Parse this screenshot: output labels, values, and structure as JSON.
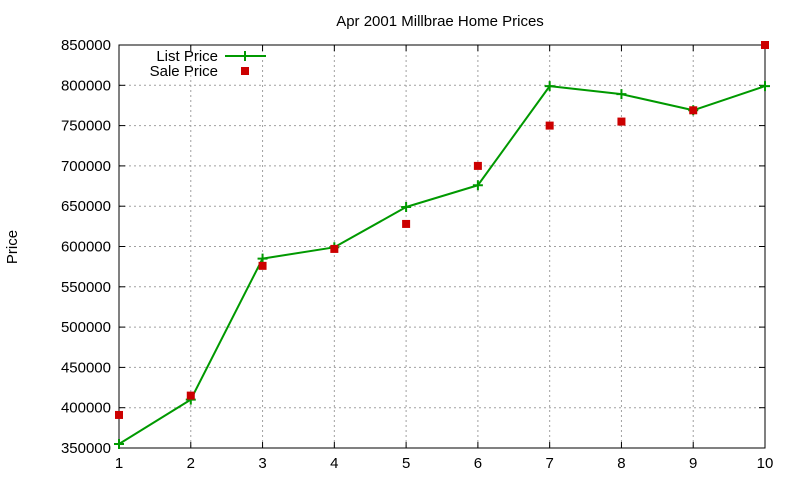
{
  "chart_data": {
    "type": "line",
    "title": "Apr 2001 Millbrae Home Prices",
    "xlabel": "",
    "ylabel": "Price",
    "x": [
      1,
      2,
      3,
      4,
      5,
      6,
      7,
      8,
      9,
      10
    ],
    "xlim": [
      1,
      10
    ],
    "ylim": [
      350000,
      850000
    ],
    "x_ticks": [
      "1",
      "2",
      "3",
      "4",
      "5",
      "6",
      "7",
      "8",
      "9",
      "10"
    ],
    "y_ticks": [
      "350000",
      "400000",
      "450000",
      "500000",
      "550000",
      "600000",
      "650000",
      "700000",
      "750000",
      "800000",
      "850000"
    ],
    "grid": true,
    "legend_position": "top-left",
    "series": [
      {
        "name": "List Price",
        "style": "line-with-plus-markers",
        "color": "#009900",
        "values": [
          355000,
          410000,
          585000,
          599000,
          649000,
          676000,
          799000,
          789000,
          769000,
          799000
        ]
      },
      {
        "name": "Sale Price",
        "style": "square-markers",
        "color": "#cc0000",
        "values": [
          391000,
          415000,
          576000,
          597000,
          628000,
          700000,
          750000,
          755000,
          769000,
          850000
        ]
      }
    ]
  }
}
